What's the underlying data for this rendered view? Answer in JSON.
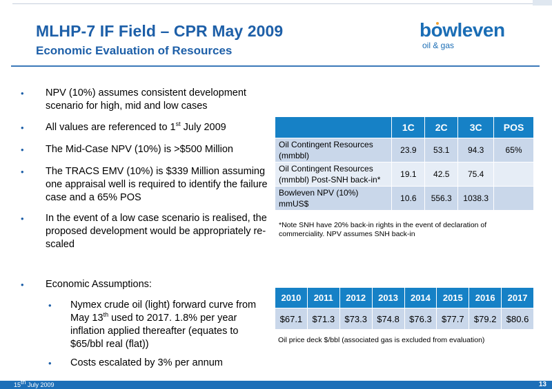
{
  "header": {
    "title": "MLHP-7 IF Field – CPR May 2009",
    "subtitle": "Economic Evaluation of Resources"
  },
  "logo": {
    "word": "bowleven",
    "tagline": "oil & gas",
    "colors": {
      "text": "#1a6db5",
      "accent": "#f0a030"
    }
  },
  "bullets": [
    {
      "text": "NPV (10%) assumes consistent development scenario for high, mid and low cases"
    },
    {
      "pre": "All values are referenced to 1",
      "sup": "st",
      "post": " July 2009"
    },
    {
      "text": "The Mid-Case NPV (10%) is >$500 Million"
    },
    {
      "text": "The TRACS EMV (10%) is $339 Million assuming one appraisal well is required to identify the failure case and a 65% POS"
    },
    {
      "text": "In the event of a low case scenario is realised, the proposed development would be appropriately re-scaled"
    },
    {
      "text": "Economic Assumptions:"
    }
  ],
  "sub_bullets": [
    {
      "pre": "Nymex crude oil (light) forward curve from May 13",
      "sup": "th",
      "post": " used to 2017.  1.8% per year inflation applied thereafter (equates to $65/bbl real (flat))"
    },
    {
      "text": "Costs escalated by 3% per annum"
    }
  ],
  "bullet_glyph": "•",
  "resources_table": {
    "headers": [
      "",
      "1C",
      "2C",
      "3C",
      "POS"
    ],
    "rows": [
      {
        "label": "Oil Contingent Resources (mmbbl)",
        "c1": "23.9",
        "c2": "53.1",
        "c3": "94.3",
        "pos": "65%"
      },
      {
        "label": "Oil Contingent Resources (mmbbl) Post-SNH back-in*",
        "c1": "19.1",
        "c2": "42.5",
        "c3": "75.4",
        "pos": ""
      },
      {
        "label": "Bowleven NPV (10%) mmUS$",
        "c1": "10.6",
        "c2": "556.3",
        "c3": "1038.3",
        "pos": ""
      }
    ],
    "note": "*Note SNH have 20% back-in rights in the event of declaration of commerciality. NPV assumes SNH back-in"
  },
  "price_table": {
    "years": [
      "2010",
      "2011",
      "2012",
      "2013",
      "2014",
      "2015",
      "2016",
      "2017"
    ],
    "prices": [
      "$67.1",
      "$71.3",
      "$73.3",
      "$74.8",
      "$76.3",
      "$77.7",
      "$79.2",
      "$80.6"
    ],
    "note": "Oil price deck $/bbl (associated gas is excluded from evaluation)"
  },
  "footer": {
    "date": "15th July 2009",
    "date_day": "15",
    "date_sup": "th",
    "date_rest": " July 2009",
    "page": "13"
  },
  "colors": {
    "title": "#1d5fa8",
    "table_header": "#1681c6",
    "table_row": "#c9d7ea",
    "table_row_alt": "#e6edf6",
    "footer": "#1d6fb8"
  }
}
